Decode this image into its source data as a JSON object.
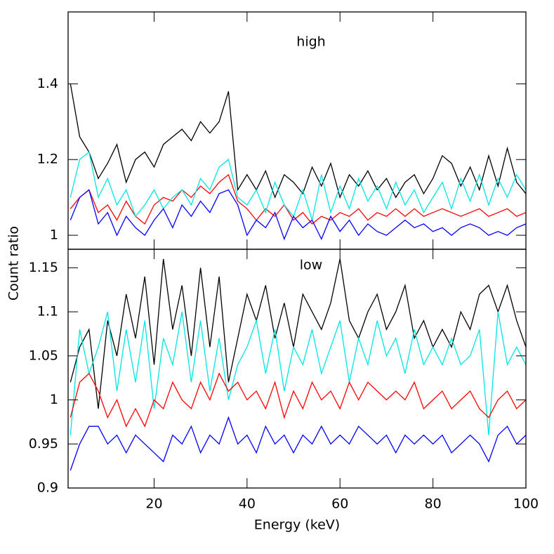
{
  "chart_data": [
    {
      "type": "line",
      "annotation": "high",
      "ylabel": "Count ratio",
      "xlim": [
        1.5,
        100
      ],
      "xticks": [
        20,
        40,
        60,
        80,
        100
      ],
      "ylim": [
        0.963,
        1.59
      ],
      "yticks": [
        1,
        1.2,
        1.4
      ],
      "x": [
        2,
        4,
        6,
        8,
        10,
        12,
        14,
        16,
        18,
        20,
        22,
        24,
        26,
        28,
        30,
        32,
        34,
        36,
        38,
        40,
        42,
        44,
        46,
        48,
        50,
        52,
        54,
        56,
        58,
        60,
        62,
        64,
        66,
        68,
        70,
        72,
        74,
        76,
        78,
        80,
        82,
        84,
        86,
        88,
        90,
        92,
        94,
        96,
        98,
        100
      ],
      "series": [
        {
          "color": "#000000",
          "values": [
            1.4,
            1.26,
            1.22,
            1.15,
            1.19,
            1.24,
            1.14,
            1.2,
            1.22,
            1.18,
            1.24,
            1.26,
            1.28,
            1.25,
            1.3,
            1.27,
            1.3,
            1.38,
            1.12,
            1.16,
            1.12,
            1.17,
            1.1,
            1.16,
            1.14,
            1.11,
            1.18,
            1.13,
            1.19,
            1.1,
            1.16,
            1.13,
            1.17,
            1.12,
            1.15,
            1.1,
            1.14,
            1.16,
            1.11,
            1.15,
            1.21,
            1.19,
            1.13,
            1.18,
            1.12,
            1.21,
            1.13,
            1.23,
            1.14,
            1.11
          ]
        },
        {
          "color": "#ff0000",
          "values": [
            1.07,
            1.1,
            1.12,
            1.06,
            1.08,
            1.04,
            1.09,
            1.05,
            1.03,
            1.08,
            1.1,
            1.09,
            1.12,
            1.1,
            1.13,
            1.11,
            1.14,
            1.16,
            1.09,
            1.07,
            1.04,
            1.07,
            1.05,
            1.08,
            1.04,
            1.06,
            1.03,
            1.05,
            1.04,
            1.06,
            1.05,
            1.07,
            1.04,
            1.06,
            1.05,
            1.07,
            1.05,
            1.07,
            1.05,
            1.06,
            1.07,
            1.06,
            1.05,
            1.06,
            1.07,
            1.05,
            1.06,
            1.07,
            1.05,
            1.06
          ]
        },
        {
          "color": "#00e5e5",
          "values": [
            1.1,
            1.2,
            1.22,
            1.1,
            1.15,
            1.08,
            1.12,
            1.05,
            1.08,
            1.12,
            1.07,
            1.1,
            1.12,
            1.08,
            1.15,
            1.12,
            1.18,
            1.2,
            1.1,
            1.08,
            1.12,
            1.06,
            1.14,
            1.08,
            1.05,
            1.12,
            1.04,
            1.16,
            1.06,
            1.13,
            1.07,
            1.15,
            1.09,
            1.13,
            1.07,
            1.14,
            1.08,
            1.12,
            1.06,
            1.1,
            1.14,
            1.07,
            1.15,
            1.09,
            1.16,
            1.08,
            1.15,
            1.1,
            1.16,
            1.12
          ]
        },
        {
          "color": "#0000ff",
          "values": [
            1.04,
            1.1,
            1.12,
            1.03,
            1.06,
            1.0,
            1.05,
            1.02,
            1.0,
            1.04,
            1.07,
            1.02,
            1.08,
            1.05,
            1.09,
            1.06,
            1.11,
            1.12,
            1.08,
            1.0,
            1.04,
            1.02,
            1.06,
            0.99,
            1.05,
            1.02,
            1.04,
            0.99,
            1.05,
            1.01,
            1.04,
            1.0,
            1.03,
            1.01,
            1.0,
            1.02,
            1.04,
            1.02,
            1.03,
            1.01,
            1.02,
            1.0,
            1.02,
            1.03,
            1.02,
            1.0,
            1.01,
            1.0,
            1.02,
            1.03
          ]
        }
      ]
    },
    {
      "type": "line",
      "annotation": "low",
      "xlabel": "Energy (keV)",
      "xlim": [
        1.5,
        100
      ],
      "xticks": [
        20,
        40,
        60,
        80,
        100
      ],
      "ylim": [
        0.9,
        1.171
      ],
      "yticks": [
        0.9,
        0.95,
        1,
        1.05,
        1.1,
        1.15
      ],
      "x": [
        2,
        4,
        6,
        8,
        10,
        12,
        14,
        16,
        18,
        20,
        22,
        24,
        26,
        28,
        30,
        32,
        34,
        36,
        38,
        40,
        42,
        44,
        46,
        48,
        50,
        52,
        54,
        56,
        58,
        60,
        62,
        64,
        66,
        68,
        70,
        72,
        74,
        76,
        78,
        80,
        82,
        84,
        86,
        88,
        90,
        92,
        94,
        96,
        98,
        100
      ],
      "series": [
        {
          "color": "#000000",
          "values": [
            1.02,
            1.06,
            1.08,
            0.99,
            1.09,
            1.05,
            1.12,
            1.07,
            1.14,
            1.04,
            1.16,
            1.08,
            1.13,
            1.05,
            1.15,
            1.06,
            1.14,
            1.02,
            1.07,
            1.12,
            1.09,
            1.13,
            1.07,
            1.11,
            1.06,
            1.12,
            1.1,
            1.08,
            1.11,
            1.16,
            1.09,
            1.07,
            1.1,
            1.12,
            1.08,
            1.1,
            1.13,
            1.07,
            1.09,
            1.06,
            1.08,
            1.06,
            1.1,
            1.08,
            1.12,
            1.13,
            1.1,
            1.13,
            1.09,
            1.06
          ]
        },
        {
          "color": "#00e5e5",
          "values": [
            0.96,
            1.08,
            1.03,
            1.06,
            1.1,
            1.01,
            1.08,
            1.02,
            1.09,
            0.99,
            1.07,
            1.04,
            1.1,
            1.02,
            1.09,
            1.01,
            1.07,
            1.0,
            1.04,
            1.06,
            1.09,
            1.03,
            1.08,
            1.01,
            1.06,
            1.04,
            1.08,
            1.03,
            1.06,
            1.09,
            1.02,
            1.07,
            1.04,
            1.09,
            1.05,
            1.07,
            1.03,
            1.08,
            1.04,
            1.06,
            1.04,
            1.07,
            1.04,
            1.05,
            1.08,
            0.96,
            1.1,
            1.04,
            1.06,
            1.04
          ]
        },
        {
          "color": "#ff0000",
          "values": [
            0.98,
            1.02,
            1.03,
            1.01,
            0.98,
            1.0,
            0.97,
            0.99,
            0.97,
            1.0,
            0.99,
            1.02,
            1.0,
            0.99,
            1.02,
            1.0,
            1.03,
            1.01,
            1.02,
            1.0,
            1.01,
            0.99,
            1.02,
            0.98,
            1.01,
            0.99,
            1.02,
            1.0,
            1.01,
            0.99,
            1.02,
            1.0,
            1.02,
            1.01,
            1.0,
            1.01,
            1.0,
            1.02,
            0.99,
            1.0,
            1.01,
            0.99,
            1.0,
            1.01,
            0.99,
            0.98,
            1.0,
            1.01,
            0.99,
            1.0
          ]
        },
        {
          "color": "#0000ff",
          "values": [
            0.92,
            0.95,
            0.97,
            0.97,
            0.95,
            0.96,
            0.94,
            0.96,
            0.95,
            0.94,
            0.93,
            0.96,
            0.95,
            0.97,
            0.94,
            0.96,
            0.95,
            0.98,
            0.95,
            0.96,
            0.94,
            0.97,
            0.95,
            0.96,
            0.94,
            0.96,
            0.95,
            0.97,
            0.95,
            0.96,
            0.95,
            0.97,
            0.96,
            0.95,
            0.96,
            0.94,
            0.96,
            0.95,
            0.96,
            0.95,
            0.96,
            0.94,
            0.95,
            0.96,
            0.95,
            0.93,
            0.96,
            0.97,
            0.95,
            0.96
          ]
        }
      ]
    }
  ]
}
